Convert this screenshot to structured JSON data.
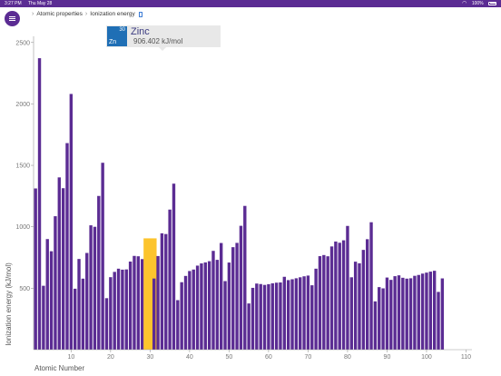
{
  "status_bar": {
    "time": "3:27 PM",
    "date": "Thu May 28",
    "battery": "100%",
    "icons": [
      "wifi-icon",
      "battery-icon"
    ]
  },
  "header": {
    "menu_icon": "hamburger-icon",
    "breadcrumb": [
      "Atomic properties",
      "Ionization energy"
    ],
    "breadcrumb_icon": "document-icon"
  },
  "colors": {
    "bar": "#5b2c93",
    "selected_bar": "#fcc42d",
    "status_bar": "#5b2c93",
    "tooltip_tile": "#1f6fb5"
  },
  "tooltip": {
    "number": "30",
    "symbol": "Zn",
    "name": "Zinc",
    "value": "906.402 kJ/mol"
  },
  "chart_data": {
    "type": "bar",
    "xlabel": "Atomic Number",
    "ylabel": "Ionization energy (kJ/mol)",
    "x": [
      1,
      2,
      3,
      4,
      5,
      6,
      7,
      8,
      9,
      10,
      11,
      12,
      13,
      14,
      15,
      16,
      17,
      18,
      19,
      20,
      21,
      22,
      23,
      24,
      25,
      26,
      27,
      28,
      29,
      30,
      31,
      32,
      33,
      34,
      35,
      36,
      37,
      38,
      39,
      40,
      41,
      42,
      43,
      44,
      45,
      46,
      47,
      48,
      49,
      50,
      51,
      52,
      53,
      54,
      55,
      56,
      57,
      58,
      59,
      60,
      61,
      62,
      63,
      64,
      65,
      66,
      67,
      68,
      69,
      70,
      71,
      72,
      73,
      74,
      75,
      76,
      77,
      78,
      79,
      80,
      81,
      82,
      83,
      84,
      85,
      86,
      87,
      88,
      89,
      90,
      91,
      92,
      93,
      94,
      95,
      96,
      97,
      98,
      99,
      100,
      101,
      102,
      103,
      104,
      105,
      106,
      107,
      108,
      109,
      110,
      111
    ],
    "values": [
      1312,
      2372,
      520,
      900,
      801,
      1086,
      1402,
      1314,
      1681,
      2081,
      496,
      738,
      578,
      787,
      1012,
      1000,
      1251,
      1521,
      419,
      590,
      633,
      659,
      651,
      653,
      717,
      763,
      760,
      737,
      745,
      906,
      579,
      762,
      947,
      941,
      1140,
      1351,
      403,
      549,
      600,
      640,
      652,
      684,
      702,
      710,
      720,
      804,
      731,
      868,
      558,
      709,
      834,
      869,
      1008,
      1170,
      376,
      503,
      538,
      534,
      527,
      533,
      540,
      545,
      547,
      593,
      566,
      573,
      581,
      589,
      597,
      603,
      524,
      659,
      761,
      770,
      760,
      840,
      880,
      870,
      890,
      1007,
      589,
      716,
      703,
      812,
      899,
      1037,
      393,
      509,
      499,
      587,
      568,
      598,
      605,
      585,
      578,
      581,
      601,
      608,
      619,
      627,
      635,
      642,
      470,
      580,
      0,
      0,
      0,
      0,
      0,
      0,
      0
    ],
    "selected_x": 30,
    "xticks": [
      10,
      20,
      30,
      40,
      50,
      60,
      70,
      80,
      90,
      100,
      110
    ],
    "yticks": [
      500,
      1000,
      1500,
      2000,
      2500
    ],
    "xlim": [
      0.5,
      111.5
    ],
    "ylim": [
      0,
      2550
    ],
    "grid": false,
    "legend": "none"
  }
}
